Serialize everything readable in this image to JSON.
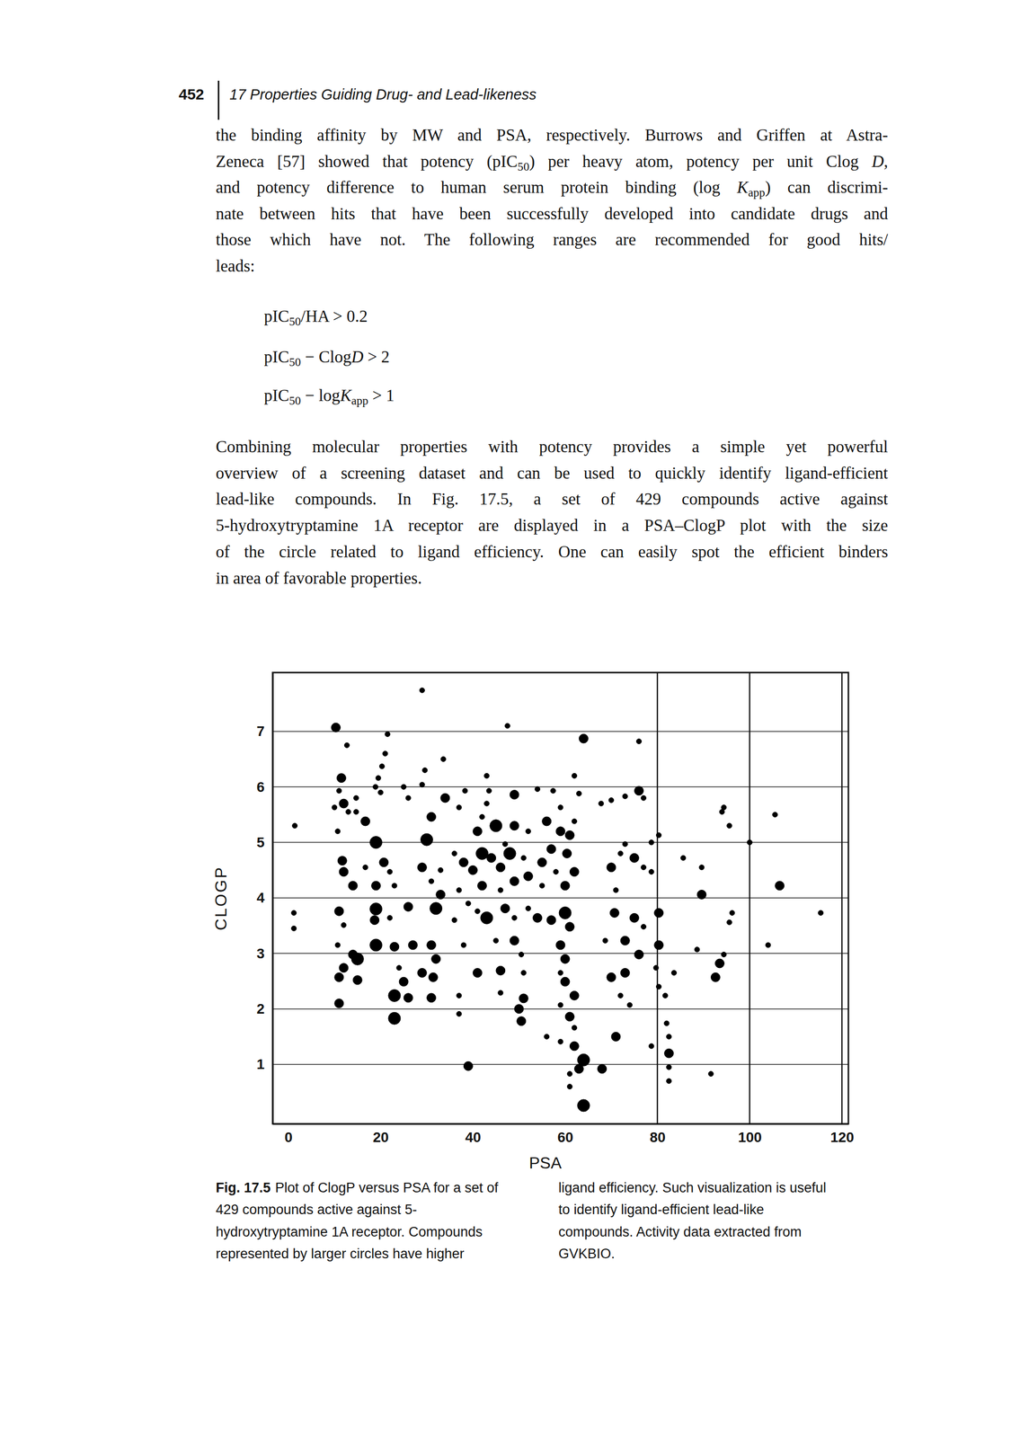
{
  "header": {
    "page_number": "452",
    "title": "17 Properties Guiding Drug- and Lead-likeness"
  },
  "paragraphs": [
    {
      "lines": [
        "the binding affinity by MW and PSA, respectively. Burrows and Griffen at Astra-",
        [
          "Zeneca [57] showed that potency (pIC",
          {
            "sub": "50"
          },
          ") per heavy atom, potency per unit Clog ",
          {
            "i": "D"
          },
          ","
        ],
        [
          "and potency difference to human serum protein binding (log ",
          {
            "i": "K"
          },
          {
            "sub": "app"
          },
          ") can discrimi-"
        ],
        "nate between hits that have been successfully developed into candidate drugs and",
        "those which have not. The following ranges are recommended for good hits/",
        "leads:"
      ]
    },
    {
      "lines": [
        "Combining molecular properties with potency provides a simple yet powerful",
        "overview of a screening dataset and can be used to quickly identify ligand-efficient",
        "lead-like compounds. In Fig. 17.5, a set of 429 compounds active against",
        "5-hydroxytryptamine 1A receptor are displayed in a PSA–ClogP plot with the size",
        "of the circle related to ligand efficiency. One can easily spot the efficient binders",
        "in area of favorable properties."
      ]
    }
  ],
  "equations": [
    [
      "pIC",
      {
        "sub": "50"
      },
      "/HA > 0.2"
    ],
    [
      "pIC",
      {
        "sub": "50"
      },
      " − Clog",
      {
        "i": "D"
      },
      " > 2"
    ],
    [
      "pIC",
      {
        "sub": "50"
      },
      " − log",
      {
        "i": "K"
      },
      {
        "sub": "app"
      },
      " > 1"
    ]
  ],
  "chart_data": {
    "type": "scatter",
    "xlabel": "PSA",
    "ylabel": "CLOGP",
    "color": "#000000",
    "marker": "circle",
    "xlim": [
      -3.4,
      121.4
    ],
    "ylim": [
      -0.07,
      8.06
    ],
    "xticks": [
      0,
      20,
      40,
      60,
      80,
      100,
      120
    ],
    "yticks": [
      1,
      2,
      3,
      4,
      5,
      6,
      7
    ],
    "grid": "y",
    "reference_lines_x": [
      80,
      100,
      120
    ],
    "x": [
      29,
      47.5,
      64,
      76,
      10.3,
      12.7,
      21.5,
      21,
      20.3,
      19.5,
      33.6,
      20,
      11.5,
      11,
      12,
      14.7,
      14.7,
      10,
      18.9,
      25,
      26,
      29,
      29.6,
      34,
      38.3,
      43.5,
      43,
      43,
      49,
      54,
      57.4,
      62,
      63,
      59,
      73,
      76,
      77,
      70,
      67.8,
      1.4,
      10.7,
      13,
      16.7,
      19,
      31,
      30,
      37,
      41,
      42,
      45,
      47,
      49,
      52,
      56,
      59,
      61,
      62,
      73,
      78.7,
      80.3,
      94,
      95.6,
      105.5,
      100,
      94.4,
      11.7,
      12,
      16.7,
      20.7,
      22,
      14,
      19,
      23,
      29,
      31,
      33,
      36,
      38,
      40,
      42,
      44,
      46,
      48,
      51,
      52,
      55,
      57,
      60.4,
      58,
      62,
      60,
      70,
      72,
      75,
      77,
      78.7,
      85.6,
      89.6,
      106.5,
      42,
      46,
      49,
      33,
      37,
      55,
      71,
      89.6,
      1.2,
      1.2,
      11,
      12,
      19,
      18.7,
      22,
      26,
      32,
      36,
      39,
      41,
      43,
      47,
      49,
      52,
      54,
      57,
      60,
      61,
      70.7,
      75,
      77,
      80.3,
      95.6,
      96.2,
      115.4,
      10.7,
      14,
      19,
      23,
      27,
      31,
      32,
      38,
      45,
      49,
      50.5,
      59,
      60,
      68.7,
      73,
      76,
      80.3,
      83.6,
      88.6,
      94.4,
      104,
      12,
      15,
      11,
      15,
      24,
      25,
      29,
      31.4,
      41,
      46,
      51,
      59,
      60,
      70,
      73,
      79.7,
      80.3,
      93.5,
      92.6,
      11,
      23,
      26,
      31,
      37,
      46,
      51,
      62,
      72,
      74,
      81.7,
      23,
      37,
      50,
      50.5,
      59,
      61,
      62,
      56,
      59,
      62,
      64,
      63,
      61,
      68,
      71,
      78.7,
      82,
      82.5,
      82.5,
      82.5,
      82.5,
      91.6,
      39,
      64,
      61
    ],
    "y": [
      7.74,
      7.1,
      6.87,
      6.82,
      7.07,
      6.75,
      6.95,
      6.6,
      6.37,
      6.16,
      6.5,
      5.9,
      6.16,
      5.93,
      5.7,
      5.8,
      5.55,
      5.63,
      6.0,
      6.0,
      5.8,
      6.04,
      6.3,
      5.8,
      5.93,
      5.93,
      6.2,
      5.7,
      5.86,
      5.96,
      5.93,
      6.2,
      5.88,
      5.63,
      5.83,
      5.93,
      5.8,
      5.76,
      5.7,
      5.3,
      5.2,
      5.55,
      5.38,
      5.0,
      5.46,
      5.05,
      5.63,
      5.2,
      5.46,
      5.3,
      4.97,
      5.3,
      5.2,
      5.38,
      5.2,
      5.13,
      5.38,
      4.97,
      5.0,
      5.13,
      5.55,
      5.3,
      5.5,
      5.0,
      5.63,
      4.67,
      4.47,
      4.55,
      4.64,
      4.47,
      4.22,
      4.22,
      4.22,
      4.55,
      4.3,
      4.5,
      4.8,
      4.64,
      4.5,
      4.8,
      4.72,
      4.55,
      4.8,
      4.72,
      4.39,
      4.64,
      4.88,
      4.8,
      4.47,
      4.47,
      4.22,
      4.55,
      4.8,
      4.72,
      4.55,
      4.47,
      4.72,
      4.55,
      4.22,
      4.22,
      4.14,
      4.3,
      4.06,
      4.14,
      4.22,
      4.14,
      4.06,
      3.73,
      3.45,
      3.76,
      3.51,
      3.8,
      3.6,
      3.64,
      3.84,
      3.81,
      3.6,
      3.9,
      3.76,
      3.64,
      3.81,
      3.64,
      3.81,
      3.64,
      3.6,
      3.73,
      3.48,
      3.73,
      3.64,
      3.48,
      3.73,
      3.56,
      3.73,
      3.73,
      3.15,
      2.98,
      3.15,
      3.12,
      3.15,
      3.15,
      2.9,
      3.15,
      3.23,
      3.23,
      2.98,
      3.15,
      2.9,
      3.23,
      3.23,
      2.98,
      3.15,
      2.65,
      3.07,
      2.98,
      3.15,
      2.74,
      2.9,
      2.57,
      2.52,
      2.74,
      2.49,
      2.65,
      2.57,
      2.65,
      2.69,
      2.65,
      2.65,
      2.49,
      2.57,
      2.65,
      2.74,
      2.4,
      2.82,
      2.57,
      2.1,
      2.24,
      2.2,
      2.2,
      2.24,
      2.29,
      2.19,
      2.24,
      2.24,
      2.07,
      2.24,
      1.83,
      1.91,
      2.0,
      1.78,
      2.07,
      1.86,
      1.66,
      1.5,
      1.41,
      1.33,
      1.08,
      0.92,
      0.83,
      0.92,
      1.5,
      1.33,
      1.74,
      1.5,
      1.2,
      0.95,
      0.7,
      0.83,
      0.97,
      0.26,
      0.6
    ],
    "sizes": [
      1,
      1,
      2,
      1,
      2,
      1,
      1,
      1,
      1,
      1,
      1,
      1,
      2,
      1,
      2,
      1,
      1,
      1,
      1,
      1,
      1,
      1,
      1,
      2,
      1,
      1,
      1,
      1,
      2,
      1,
      1,
      1,
      1,
      1,
      1,
      2,
      1,
      1,
      1,
      1,
      1,
      1,
      2,
      3,
      2,
      3,
      1,
      2,
      1,
      3,
      1,
      2,
      1,
      2,
      2,
      2,
      1,
      1,
      1,
      1,
      1,
      1,
      1,
      1,
      1,
      2,
      2,
      1,
      2,
      1,
      2,
      2,
      1,
      2,
      1,
      1,
      1,
      2,
      2,
      3,
      2,
      2,
      3,
      1,
      2,
      2,
      2,
      2,
      1,
      2,
      2,
      2,
      1,
      2,
      1,
      1,
      1,
      1,
      2,
      2,
      1,
      2,
      2,
      1,
      1,
      1,
      2,
      1,
      1,
      2,
      1,
      3,
      2,
      1,
      2,
      3,
      1,
      1,
      1,
      3,
      2,
      1,
      1,
      2,
      2,
      3,
      2,
      2,
      2,
      1,
      2,
      1,
      1,
      1,
      1,
      2,
      3,
      2,
      2,
      2,
      2,
      1,
      1,
      2,
      1,
      2,
      2,
      1,
      2,
      2,
      2,
      1,
      1,
      1,
      1,
      2,
      3,
      2,
      2,
      1,
      2,
      2,
      2,
      2,
      2,
      1,
      1,
      2,
      2,
      2,
      1,
      1,
      2,
      2,
      2,
      3,
      2,
      2,
      1,
      1,
      2,
      2,
      1,
      1,
      1,
      3,
      1,
      2,
      2,
      1,
      2,
      1,
      1,
      1,
      2,
      3,
      2,
      1,
      2,
      2,
      1,
      1,
      1,
      2,
      1,
      1,
      1,
      2,
      3,
      1
    ]
  },
  "caption": {
    "label": "Fig. 17.5",
    "left_lines": [
      "Plot of ClogP versus PSA for a set of",
      "429 compounds active against 5-",
      "hydroxytryptamine 1A receptor. Compounds",
      "represented by larger circles have higher"
    ],
    "right_lines": [
      "ligand efficiency. Such visualization is useful",
      "to identify ligand-efficient lead-like",
      "compounds. Activity data extracted from",
      "GVKBIO."
    ]
  }
}
